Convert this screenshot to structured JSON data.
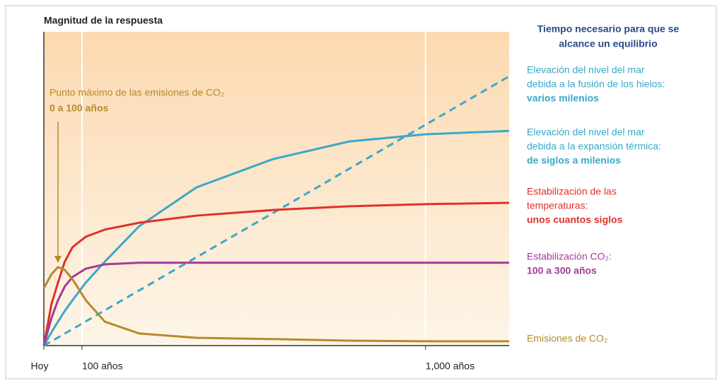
{
  "chart_data": {
    "type": "line",
    "title": "Magnitud de la respuesta",
    "legend_title": [
      "Tiempo necesario para que se",
      "alcance un equilibrio"
    ],
    "annotation": [
      "Punto máximo de las emisiones de CO₂",
      "0 a 100 años"
    ],
    "annotation_color": "#b58a2a",
    "x": [
      0,
      20,
      37,
      55,
      75,
      110,
      160,
      250,
      400,
      600,
      800,
      1000,
      1219
    ],
    "xlim": [
      0,
      1219
    ],
    "xticks": [
      {
        "value": 0,
        "label": "Hoy"
      },
      {
        "value": 100,
        "label": "100 años"
      },
      {
        "value": 1000,
        "label": "1,000 años"
      }
    ],
    "ylim": [
      0,
      100
    ],
    "grid": true,
    "series": [
      {
        "name": [
          "Elevación del nivel del mar",
          "debida a la fusión de los hielos:",
          "varios milenios"
        ],
        "color": "#3aa8c8",
        "dashed": true,
        "values": [
          0,
          1.4,
          2.6,
          3.9,
          5.3,
          7.8,
          11.4,
          17.8,
          28.5,
          42.7,
          57.0,
          71.2,
          86.8
        ]
      },
      {
        "name": [
          "Elevación del nivel del mar",
          "debida a la expansión térmica:",
          "de siglos a milenios"
        ],
        "color": "#3aa8c8",
        "dashed": false,
        "values": [
          0,
          4.3,
          7.7,
          11.2,
          14.6,
          20.3,
          27.1,
          38.5,
          51.0,
          60.1,
          65.8,
          68.1,
          69.2
        ]
      },
      {
        "name": [
          "Estabilización de las",
          "temperaturas:",
          "unos cuantos siglos"
        ],
        "color": "#e0302a",
        "dashed": false,
        "values": [
          0,
          13.4,
          20.3,
          27.1,
          31.7,
          35.1,
          37.4,
          39.6,
          41.9,
          43.7,
          44.9,
          45.6,
          46.0
        ]
      },
      {
        "name": [
          "Estabilización CO₂:",
          "100 a 300 años"
        ],
        "color": "#a53a9b",
        "dashed": false,
        "values": [
          0,
          8.9,
          14.6,
          19.1,
          22.1,
          24.8,
          26.2,
          26.7,
          26.7,
          26.7,
          26.7,
          26.7,
          26.7
        ]
      },
      {
        "name": [
          "Emisiones de CO₂"
        ],
        "color": "#b58a2a",
        "dashed": false,
        "values": [
          18.5,
          23,
          25.3,
          24.4,
          21.4,
          14.6,
          7.7,
          3.9,
          2.5,
          2.1,
          1.6,
          1.4,
          1.4
        ]
      }
    ]
  }
}
